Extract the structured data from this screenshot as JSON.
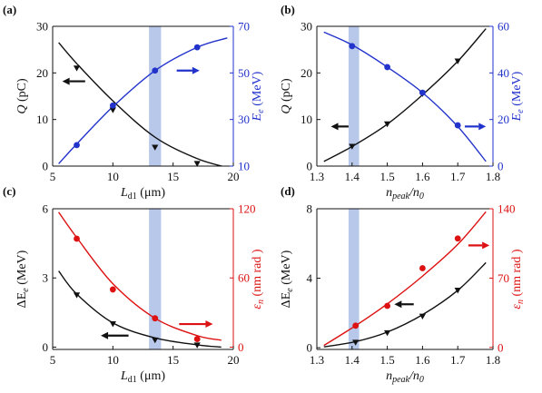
{
  "colors": {
    "left": "#111111",
    "blue": "#2233cc",
    "red": "#dd1111",
    "band": "#b8c8ea"
  },
  "chart_data": [
    {
      "type": "line",
      "panel_label": "(a)",
      "xlabel_main": "L",
      "xlabel_sub": "d1",
      "xlabel_unit": " (μm)",
      "xlim": [
        5,
        20
      ],
      "xticks": [
        5,
        10,
        15,
        20
      ],
      "ylabel_left_main": "Q",
      "ylabel_left_unit": " (pC)",
      "ylim_left": [
        0,
        30
      ],
      "yticks_left": [
        0,
        10,
        20,
        30
      ],
      "ylabel_right_main": "E",
      "ylabel_right_sub": "e",
      "ylabel_right_unit": " (MeV)",
      "ylim_right": [
        10,
        70
      ],
      "yticks_right": [
        10,
        30,
        50,
        70
      ],
      "right_color": "blue",
      "band": [
        13,
        14
      ],
      "left_series": {
        "points": [
          [
            7.0,
            21.0
          ],
          [
            10.0,
            12.0
          ],
          [
            13.5,
            4.0
          ],
          [
            17.0,
            0.5
          ]
        ],
        "curve": [
          [
            5.5,
            26.5
          ],
          [
            7,
            22
          ],
          [
            10,
            14
          ],
          [
            13.5,
            6.2
          ],
          [
            17,
            1.6
          ],
          [
            19.5,
            -0.3
          ]
        ],
        "marker": "triangle"
      },
      "right_series": {
        "points": [
          [
            7.0,
            19.0
          ],
          [
            10.0,
            36.0
          ],
          [
            13.5,
            51.0
          ],
          [
            17.0,
            61.0
          ]
        ],
        "curve": [
          [
            5.5,
            11
          ],
          [
            7,
            19.5
          ],
          [
            10,
            35.5
          ],
          [
            13.5,
            51
          ],
          [
            17,
            61
          ],
          [
            19.5,
            65
          ]
        ],
        "marker": "circle"
      },
      "arrow_left": {
        "x": [
          7.7,
          5.8
        ],
        "y_left": 18.2
      },
      "arrow_right": {
        "x": [
          15.3,
          17.2
        ],
        "y_right": 51.0
      }
    },
    {
      "type": "line",
      "panel_label": "(b)",
      "xlabel_main": "n",
      "xlabel_sub": "peak",
      "xlabel_mid": "/n",
      "xlabel_sub2": "0",
      "xlim": [
        1.3,
        1.8
      ],
      "xticks": [
        1.3,
        1.4,
        1.5,
        1.6,
        1.7,
        1.8
      ],
      "ylabel_left_main": "Q",
      "ylabel_left_unit": " (pC)",
      "ylim_left": [
        0,
        30
      ],
      "yticks_left": [
        0,
        10,
        20,
        30
      ],
      "ylabel_right_main": "E",
      "ylabel_right_sub": "e",
      "ylabel_right_unit": " (MeV)",
      "ylim_right": [
        0,
        60
      ],
      "yticks_right": [
        0,
        20,
        40,
        60
      ],
      "right_color": "blue",
      "band": [
        1.39,
        1.42
      ],
      "left_series": {
        "points": [
          [
            1.4,
            4.2
          ],
          [
            1.5,
            9.0
          ],
          [
            1.6,
            15.5
          ],
          [
            1.7,
            22.5
          ]
        ],
        "curve": [
          [
            1.32,
            1.0
          ],
          [
            1.4,
            4.2
          ],
          [
            1.5,
            9.0
          ],
          [
            1.6,
            15.3
          ],
          [
            1.7,
            22.5
          ],
          [
            1.78,
            29.5
          ]
        ],
        "marker": "triangle"
      },
      "right_series": {
        "points": [
          [
            1.4,
            51.5
          ],
          [
            1.5,
            42.5
          ],
          [
            1.6,
            31.5
          ],
          [
            1.7,
            17.5
          ]
        ],
        "curve": [
          [
            1.32,
            57.5
          ],
          [
            1.4,
            52.0
          ],
          [
            1.5,
            42.5
          ],
          [
            1.6,
            31.5
          ],
          [
            1.7,
            17.0
          ],
          [
            1.78,
            2.0
          ]
        ],
        "marker": "circle"
      },
      "arrow_left": {
        "x": [
          1.39,
          1.34
        ],
        "y_left": 8.5
      },
      "arrow_right": {
        "x": [
          1.72,
          1.78
        ],
        "y_right": 17.0
      }
    },
    {
      "type": "line",
      "panel_label": "(c)",
      "xlabel_main": "L",
      "xlabel_sub": "d1",
      "xlabel_unit": " (μm)",
      "xlim": [
        5,
        20
      ],
      "xticks": [
        5,
        10,
        15,
        20
      ],
      "ylabel_left_main": "ΔE",
      "ylabel_left_sub": "e",
      "ylabel_left_unit": " (MeV)",
      "ylim_left": [
        -0.1,
        6.0
      ],
      "yticks_left": [
        0,
        3,
        6
      ],
      "ylabel_right_main": "ε",
      "ylabel_right_sub": "n",
      "ylabel_right_unit": " (nm rad )",
      "ylim_right": [
        -2,
        120
      ],
      "yticks_right": [
        0,
        60,
        120
      ],
      "right_color": "red",
      "band": [
        13,
        14
      ],
      "left_series": {
        "points": [
          [
            7.0,
            2.25
          ],
          [
            10.0,
            1.0
          ],
          [
            13.5,
            0.3
          ],
          [
            17.0,
            0.08
          ]
        ],
        "curve": [
          [
            5.5,
            3.3
          ],
          [
            7,
            2.3
          ],
          [
            10,
            1.05
          ],
          [
            13.5,
            0.4
          ],
          [
            17,
            0.1
          ],
          [
            19,
            0.0
          ]
        ],
        "marker": "triangle"
      },
      "right_series": {
        "points": [
          [
            7.0,
            94.0
          ],
          [
            10.0,
            50.0
          ],
          [
            13.5,
            25.0
          ],
          [
            17.0,
            7.0
          ]
        ],
        "curve": [
          [
            5.5,
            117
          ],
          [
            7,
            95
          ],
          [
            10,
            55
          ],
          [
            13.5,
            25
          ],
          [
            17,
            10
          ],
          [
            19,
            6
          ]
        ],
        "marker": "circle"
      },
      "arrow_left": {
        "x": [
          11.3,
          9.0
        ],
        "y_left": 0.5
      },
      "arrow_right": {
        "x": [
          15.5,
          18.3
        ],
        "y_right": 20.0
      }
    },
    {
      "type": "line",
      "panel_label": "(d)",
      "xlabel_main": "n",
      "xlabel_sub": "peak",
      "xlabel_mid": "/n",
      "xlabel_sub2": "0",
      "xlim": [
        1.3,
        1.8
      ],
      "xticks": [
        1.3,
        1.4,
        1.5,
        1.6,
        1.7,
        1.8
      ],
      "ylabel_left_main": "ΔE",
      "ylabel_left_sub": "e",
      "ylabel_left_unit": " (MeV)",
      "ylim_left": [
        -0.1,
        8.0
      ],
      "yticks_left": [
        0,
        4,
        8
      ],
      "ylabel_right_main": "ε",
      "ylabel_right_sub": "n",
      "ylabel_right_unit": " (nm rad )",
      "ylim_right": [
        -2,
        140
      ],
      "yticks_right": [
        0,
        70,
        140
      ],
      "right_color": "red",
      "band": [
        1.39,
        1.42
      ],
      "left_series": {
        "points": [
          [
            1.41,
            0.3
          ],
          [
            1.5,
            0.85
          ],
          [
            1.6,
            1.8
          ],
          [
            1.7,
            3.3
          ]
        ],
        "curve": [
          [
            1.32,
            0.05
          ],
          [
            1.41,
            0.35
          ],
          [
            1.5,
            0.9
          ],
          [
            1.6,
            1.9
          ],
          [
            1.7,
            3.3
          ],
          [
            1.78,
            4.9
          ]
        ],
        "marker": "triangle"
      },
      "right_series": {
        "points": [
          [
            1.41,
            22.0
          ],
          [
            1.5,
            42.0
          ],
          [
            1.6,
            80.0
          ],
          [
            1.7,
            110.0
          ]
        ],
        "curve": [
          [
            1.32,
            2
          ],
          [
            1.41,
            22
          ],
          [
            1.5,
            44
          ],
          [
            1.6,
            72
          ],
          [
            1.7,
            104
          ],
          [
            1.78,
            137
          ]
        ],
        "marker": "circle"
      },
      "arrow_left": {
        "x": [
          1.575,
          1.52
        ],
        "y_left": 2.5
      },
      "arrow_right": {
        "x": [
          1.73,
          1.79
        ],
        "y_right": 103.0
      }
    }
  ]
}
